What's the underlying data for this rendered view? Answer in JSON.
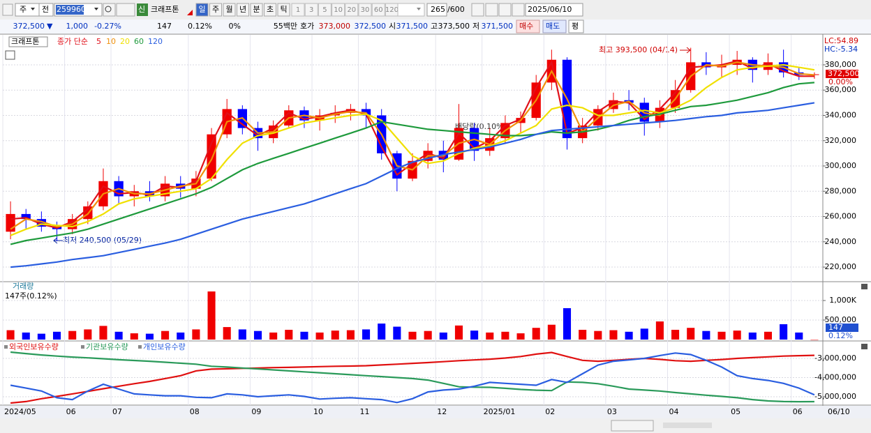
{
  "toolbar": {
    "market": "주",
    "prev": "전",
    "code": "259960",
    "credit": "신",
    "name": "크래프톤",
    "periods": [
      "일",
      "주",
      "월",
      "년",
      "분",
      "초",
      "틱"
    ],
    "intervals": [
      "1",
      "3",
      "5",
      "10",
      "20",
      "30",
      "60",
      "120"
    ],
    "count": "265",
    "max_count": "/600",
    "date": "2025/06/10"
  },
  "quote": {
    "price": "372,500",
    "arrow": "▼",
    "change": "1,000",
    "change_pct": "-0.27%",
    "volume": "147",
    "volume_pct": "0.12%",
    "ratio": "0%",
    "amount": "55백만",
    "ask_label": "호가",
    "ask": "373,000",
    "bid": "372,500",
    "open_label": "시",
    "open": "371,500",
    "high_label": "고",
    "high": "373,500",
    "low_label": "저",
    "low": "371,500",
    "buy": "매수",
    "sell": "매도",
    "avg": "평"
  },
  "chart_data": [
    {
      "type": "candlestick",
      "categories": [
        "2024/05",
        null,
        null,
        null,
        "06",
        null,
        null,
        "07",
        null,
        null,
        null,
        null,
        "08",
        null,
        null,
        null,
        "09",
        null,
        null,
        null,
        "10",
        null,
        null,
        "11",
        null,
        null,
        null,
        null,
        "12",
        null,
        null,
        "2025/01",
        null,
        null,
        null,
        "02",
        null,
        null,
        null,
        "03",
        null,
        null,
        null,
        "04",
        null,
        null,
        null,
        "05",
        null,
        null,
        null,
        "06",
        null
      ],
      "last_date_label": "06/10",
      "candles": {
        "name": "크래프톤",
        "up_color": "#f00000",
        "down_color": "#0000ff",
        "open": [
          248000,
          262000,
          258000,
          252000,
          250000,
          258000,
          268000,
          288000,
          276000,
          280000,
          276000,
          286000,
          282000,
          290000,
          325000,
          345000,
          330000,
          322000,
          332000,
          344000,
          336000,
          340000,
          342000,
          345000,
          340000,
          310000,
          290000,
          304000,
          312000,
          305000,
          330000,
          312000,
          322000,
          334000,
          338000,
          366000,
          384000,
          322000,
          332000,
          345000,
          352000,
          350000,
          335000,
          346000,
          360000,
          382000,
          378000,
          380000,
          384000,
          376000,
          382000,
          374000,
          372000
        ],
        "high": [
          272000,
          266000,
          264000,
          256000,
          262000,
          272000,
          298000,
          292000,
          285000,
          288000,
          292000,
          292000,
          296000,
          330000,
          353000,
          348000,
          335000,
          336000,
          348000,
          347000,
          345000,
          348000,
          349000,
          350000,
          345000,
          312000,
          310000,
          318000,
          320000,
          349000,
          334000,
          330000,
          340000,
          343000,
          372000,
          392000,
          386000,
          338000,
          348000,
          358000,
          360000,
          354000,
          352000,
          368000,
          393500,
          390000,
          388000,
          391000,
          386000,
          389000,
          392000,
          378000,
          374000
        ],
        "low": [
          242000,
          250000,
          248000,
          240500,
          246000,
          254000,
          265000,
          270000,
          268000,
          272000,
          272000,
          275000,
          276000,
          288000,
          322000,
          325000,
          312000,
          318000,
          330000,
          330000,
          328000,
          334000,
          336000,
          330000,
          305000,
          280000,
          288000,
          298000,
          295000,
          304000,
          304000,
          308000,
          318000,
          326000,
          336000,
          360000,
          313000,
          318000,
          328000,
          342000,
          344000,
          324000,
          330000,
          342000,
          358000,
          372000,
          370000,
          372000,
          366000,
          372000,
          370000,
          368000,
          369000
        ],
        "close": [
          262000,
          258000,
          252000,
          250000,
          258000,
          268000,
          288000,
          276000,
          280000,
          276000,
          286000,
          282000,
          290000,
          325000,
          345000,
          330000,
          322000,
          332000,
          344000,
          336000,
          340000,
          342000,
          345000,
          340000,
          310000,
          290000,
          304000,
          312000,
          305000,
          330000,
          312000,
          322000,
          334000,
          338000,
          366000,
          384000,
          322000,
          332000,
          345000,
          352000,
          350000,
          335000,
          346000,
          360000,
          382000,
          378000,
          380000,
          384000,
          376000,
          382000,
          374000,
          372000,
          372500
        ]
      },
      "ma_label": "종가 단순",
      "series": [
        {
          "name": "5",
          "color": "#e0101a",
          "values": [
            258000,
            259000,
            254000,
            251000,
            256000,
            266000,
            284000,
            278000,
            279000,
            277000,
            284000,
            283000,
            288000,
            318000,
            342000,
            333000,
            324000,
            330000,
            342000,
            337000,
            339000,
            342000,
            344000,
            341000,
            315000,
            293000,
            302000,
            310000,
            306000,
            326000,
            314000,
            320000,
            332000,
            337000,
            362000,
            382000,
            326000,
            330000,
            343000,
            351000,
            350000,
            337000,
            345000,
            358000,
            378000,
            379000,
            380000,
            383000,
            377000,
            381000,
            375000,
            371000,
            371000
          ]
        },
        {
          "name": "10",
          "color": "#f0900a",
          "values": [
            250000,
            258000,
            256000,
            252000,
            254000,
            262000,
            278000,
            282000,
            278000,
            278000,
            281000,
            284000,
            286000,
            305000,
            335000,
            338000,
            326000,
            327000,
            338000,
            340000,
            338000,
            341000,
            343000,
            342000,
            325000,
            300000,
            297000,
            308000,
            308000,
            318000,
            321000,
            317000,
            328000,
            336000,
            352000,
            375000,
            353000,
            327000,
            338000,
            348000,
            351000,
            342000,
            340000,
            353000,
            371000,
            380000,
            379000,
            382000,
            380000,
            379000,
            378000,
            373000,
            372000
          ]
        },
        {
          "name": "20",
          "color": "#f0e000",
          "values": [
            245000,
            250000,
            254000,
            253000,
            252000,
            256000,
            262000,
            270000,
            274000,
            276000,
            278000,
            280000,
            282000,
            290000,
            305000,
            318000,
            324000,
            326000,
            330000,
            334000,
            336000,
            338000,
            340000,
            341000,
            336000,
            322000,
            308000,
            302000,
            304000,
            310000,
            314000,
            316000,
            320000,
            326000,
            332000,
            345000,
            348000,
            346000,
            340000,
            340000,
            342000,
            344000,
            342000,
            346000,
            352000,
            362000,
            370000,
            376000,
            378000,
            379000,
            380000,
            378000,
            376000
          ]
        },
        {
          "name": "60",
          "color": "#1e9a3c",
          "values": [
            238000,
            241000,
            243000,
            245000,
            247000,
            250000,
            254000,
            258000,
            262000,
            266000,
            270000,
            274000,
            278000,
            283000,
            290000,
            297000,
            302000,
            306000,
            310000,
            314000,
            318000,
            322000,
            326000,
            330000,
            335000,
            333000,
            331000,
            329000,
            328000,
            327000,
            326000,
            325000,
            324000,
            324000,
            325000,
            327000,
            326000,
            327000,
            329000,
            332000,
            336000,
            339000,
            341000,
            344000,
            347000,
            348000,
            350000,
            352000,
            355000,
            358000,
            362000,
            365000,
            366000
          ]
        },
        {
          "name": "120",
          "color": "#2a5ee0",
          "values": [
            220000,
            221000,
            222500,
            224000,
            226000,
            227500,
            229000,
            231500,
            234000,
            236500,
            239000,
            242000,
            246000,
            250000,
            254000,
            258000,
            261000,
            264000,
            267000,
            270000,
            274000,
            278000,
            282000,
            286000,
            292000,
            298000,
            303000,
            306000,
            309000,
            311000,
            313000,
            315000,
            318000,
            321000,
            325000,
            328000,
            329000,
            330000,
            331000,
            332000,
            333000,
            334000,
            335000,
            336000,
            337500,
            339000,
            340000,
            342000,
            343000,
            344000,
            346000,
            348000,
            350000
          ]
        }
      ],
      "ylim": [
        209000,
        403700
      ],
      "yticks": [
        {
          "value": 220000,
          "label": "220,000"
        },
        {
          "value": 240000,
          "label": "240,000"
        },
        {
          "value": 260000,
          "label": "260,000"
        },
        {
          "value": 280000,
          "label": "280,000"
        },
        {
          "value": 300000,
          "label": "300,000"
        },
        {
          "value": 320000,
          "label": "320,000"
        },
        {
          "value": 340000,
          "label": "340,000"
        },
        {
          "value": 360000,
          "label": "360,000"
        },
        {
          "value": 380000,
          "label": "380,000"
        }
      ],
      "grid": true,
      "annotations": [
        "최고 393,500 (04/14)",
        "최저 240,500 (05/29)",
        "배당락(0.10%)"
      ],
      "right_labels": {
        "lc": "LC:54.89",
        "hc": "HC:-5.34",
        "price": "372,500",
        "pct": "0.00%"
      }
    },
    {
      "type": "bar",
      "title": "거래량",
      "subtitle": "147주(0.12%)",
      "values": [
        240000,
        180000,
        150000,
        200000,
        220000,
        260000,
        350000,
        200000,
        160000,
        150000,
        220000,
        180000,
        260000,
        1232000,
        320000,
        260000,
        220000,
        180000,
        250000,
        200000,
        180000,
        230000,
        240000,
        260000,
        410000,
        330000,
        200000,
        220000,
        180000,
        360000,
        230000,
        180000,
        200000,
        160000,
        300000,
        380000,
        804000,
        250000,
        220000,
        240000,
        200000,
        280000,
        464000,
        250000,
        300000,
        220000,
        200000,
        230000,
        180000,
        200000,
        393000,
        180000,
        147
      ],
      "ylim": [
        0,
        1482000
      ],
      "yticks": [
        {
          "value": 500000,
          "label": "500,000"
        },
        {
          "value": 1000000,
          "label": "1,000K"
        }
      ],
      "grid": true,
      "last_label": "147",
      "last_pct": "0.12%"
    },
    {
      "type": "line",
      "series": [
        {
          "name": "외국인보유수량",
          "color": "#e01010",
          "values": [
            -5327000,
            -5250000,
            -5100000,
            -4980000,
            -4850000,
            -4720000,
            -4580000,
            -4450000,
            -4320000,
            -4200000,
            -4050000,
            -3900000,
            -3650000,
            -3560000,
            -3540000,
            -3520000,
            -3500000,
            -3480000,
            -3470000,
            -3450000,
            -3430000,
            -3410000,
            -3400000,
            -3380000,
            -3340000,
            -3300000,
            -3260000,
            -3220000,
            -3170000,
            -3120000,
            -3080000,
            -3040000,
            -2980000,
            -2900000,
            -2780000,
            -2690000,
            -2900000,
            -3100000,
            -3150000,
            -3100000,
            -3050000,
            -3000000,
            -3050000,
            -3120000,
            -3150000,
            -3100000,
            -3060000,
            -3000000,
            -2960000,
            -2920000,
            -2880000,
            -2860000,
            -2840000
          ]
        },
        {
          "name": "기관보유수량",
          "color": "#2a9a5a",
          "values": [
            -2673000,
            -2750000,
            -2820000,
            -2880000,
            -2930000,
            -2970000,
            -3020000,
            -3070000,
            -3110000,
            -3150000,
            -3200000,
            -3250000,
            -3300000,
            -3410000,
            -3450000,
            -3500000,
            -3550000,
            -3600000,
            -3650000,
            -3700000,
            -3750000,
            -3800000,
            -3850000,
            -3900000,
            -3950000,
            -4000000,
            -4050000,
            -4130000,
            -4300000,
            -4480000,
            -4500000,
            -4510000,
            -4560000,
            -4620000,
            -4660000,
            -4680000,
            -4230000,
            -4250000,
            -4320000,
            -4450000,
            -4600000,
            -4650000,
            -4700000,
            -4780000,
            -4850000,
            -4920000,
            -4980000,
            -5050000,
            -5150000,
            -5220000,
            -5250000,
            -5260000,
            -5255000
          ]
        },
        {
          "name": "개인보유수량",
          "color": "#2a5ee0",
          "values": [
            -4400000,
            -4550000,
            -4700000,
            -5050000,
            -5150000,
            -4700000,
            -4350000,
            -4600000,
            -4850000,
            -4900000,
            -4950000,
            -4950000,
            -5030000,
            -5050000,
            -4850000,
            -4900000,
            -5000000,
            -4950000,
            -4900000,
            -4980000,
            -5120000,
            -5080000,
            -5050000,
            -5100000,
            -5150000,
            -5300000,
            -5100000,
            -4750000,
            -4650000,
            -4600000,
            -4450000,
            -4250000,
            -4300000,
            -4350000,
            -4400000,
            -4100000,
            -4250000,
            -3800000,
            -3350000,
            -3150000,
            -3080000,
            -3000000,
            -2850000,
            -2720000,
            -2800000,
            -3100000,
            -3450000,
            -3900000,
            -4050000,
            -4150000,
            -4300000,
            -4550000,
            -4900000
          ]
        }
      ],
      "ylim": [
        -5400000,
        -2200000
      ],
      "yticks": [
        {
          "value": -5000000,
          "label": "-5,000,000"
        },
        {
          "value": -4000000,
          "label": "-4,000,000"
        },
        {
          "value": -3000000,
          "label": "-3,000,000"
        }
      ],
      "grid": true
    }
  ]
}
